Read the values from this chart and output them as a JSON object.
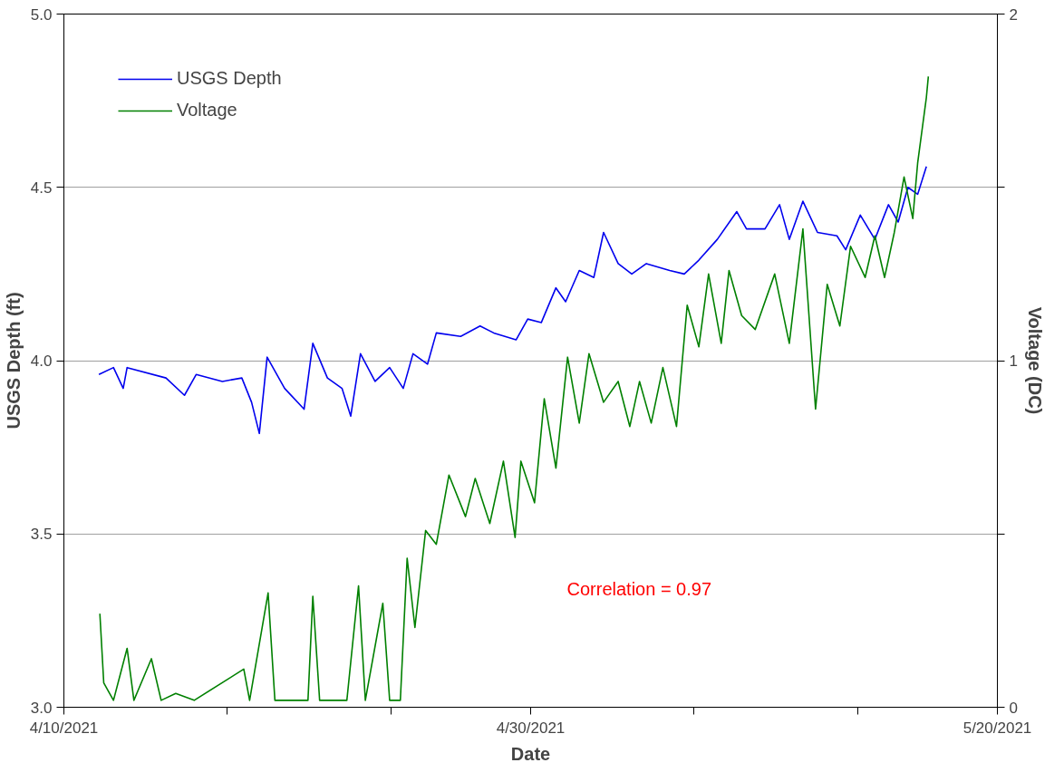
{
  "chart_data": {
    "type": "line",
    "xlabel": "Date",
    "ylabel": "USGS Depth (ft)",
    "y2label": "Voltage (DC)",
    "xlim": [
      "2021-04-10",
      "2021-05-20"
    ],
    "xticks": [
      {
        "value": "2021-04-10",
        "label": "4/10/2021"
      },
      {
        "value": "2021-04-17",
        "label": null
      },
      {
        "value": "2021-04-24",
        "label": null
      },
      {
        "value": "2021-04-30",
        "label": "4/30/2021"
      },
      {
        "value": "2021-05-07",
        "label": null
      },
      {
        "value": "2021-05-14",
        "label": null
      },
      {
        "value": "2021-05-20",
        "label": "5/20/2021"
      }
    ],
    "ylim": [
      3.0,
      5.0
    ],
    "yticks": [
      {
        "value": 3.0,
        "label": "3.0"
      },
      3.5,
      {
        "value": 4.0,
        "label": "4.0"
      },
      4.5,
      {
        "value": 5.0,
        "label": "5.0"
      }
    ],
    "y2lim": [
      0,
      2
    ],
    "y2ticks": [
      0,
      {
        "value": 0.5,
        "label": null
      },
      1,
      {
        "value": 1.5,
        "label": null
      },
      2
    ],
    "grid": "y",
    "legend": "top left",
    "annotations": [
      "Correlation = 0.97"
    ],
    "series": [
      {
        "name": "USGS Depth",
        "color": "#0000ee",
        "x": [
          "2021-04-11T12:00",
          "2021-04-12T03:00",
          "2021-04-12T13:00",
          "2021-04-12T17:00",
          "2021-04-14T09:00",
          "2021-04-15T04:00",
          "2021-04-15T16:00",
          "2021-04-16T19:00",
          "2021-04-17T15:00",
          "2021-04-18T01:00",
          "2021-04-18T09:00",
          "2021-04-18T17:00",
          "2021-04-19T11:00",
          "2021-04-20T07:00",
          "2021-04-20T16:00",
          "2021-04-21T07:00",
          "2021-04-21T22:00",
          "2021-04-22T07:00",
          "2021-04-22T17:00",
          "2021-04-23T08:00",
          "2021-04-23T23:00",
          "2021-04-24T13:00",
          "2021-04-24T23:00",
          "2021-04-25T14:00",
          "2021-04-25T23:00",
          "2021-04-27T00:00",
          "2021-04-27T20:00",
          "2021-04-28T10:00",
          "2021-04-29T09:00",
          "2021-04-29T21:00",
          "2021-04-30T11:00",
          "2021-05-01T02:00",
          "2021-05-01T12:00",
          "2021-05-02T02:00",
          "2021-05-02T17:00",
          "2021-05-03T03:00",
          "2021-05-03T18:00",
          "2021-05-04T08:00",
          "2021-05-04T23:00",
          "2021-05-05T23:00",
          "2021-05-06T14:00",
          "2021-05-07T05:00",
          "2021-05-08T00:00",
          "2021-05-08T20:00",
          "2021-05-09T06:00",
          "2021-05-10T01:00",
          "2021-05-10T16:00",
          "2021-05-11T02:00",
          "2021-05-11T16:00",
          "2021-05-12T07:00",
          "2021-05-13T03:00",
          "2021-05-13T12:00",
          "2021-05-14T03:00",
          "2021-05-14T18:00",
          "2021-05-15T08:00",
          "2021-05-15T18:00",
          "2021-05-16T04:00",
          "2021-05-16T14:00",
          "2021-05-16T23:00"
        ],
        "values": [
          3.96,
          3.98,
          3.92,
          3.98,
          3.95,
          3.9,
          3.96,
          3.94,
          3.95,
          3.88,
          3.79,
          4.01,
          3.92,
          3.86,
          4.05,
          3.95,
          3.92,
          3.84,
          4.02,
          3.94,
          3.98,
          3.92,
          4.02,
          3.99,
          4.08,
          4.07,
          4.1,
          4.08,
          4.06,
          4.12,
          4.11,
          4.21,
          4.17,
          4.26,
          4.24,
          4.37,
          4.28,
          4.25,
          4.28,
          4.26,
          4.25,
          4.29,
          4.35,
          4.43,
          4.38,
          4.38,
          4.45,
          4.35,
          4.46,
          4.37,
          4.36,
          4.32,
          4.42,
          4.35,
          4.45,
          4.4,
          4.5,
          4.48,
          4.56
        ]
      },
      {
        "name": "Voltage",
        "color": "#008000",
        "axis": "y2",
        "x": [
          "2021-04-11T13:00",
          "2021-04-11T17:00",
          "2021-04-12T03:00",
          "2021-04-12T17:00",
          "2021-04-13T00:00",
          "2021-04-13T18:00",
          "2021-04-14T04:00",
          "2021-04-14T19:00",
          "2021-04-15T14:00",
          "2021-04-17T17:00",
          "2021-04-17T23:00",
          "2021-04-18T18:00",
          "2021-04-19T01:00",
          "2021-04-20T11:00",
          "2021-04-20T16:00",
          "2021-04-20T23:00",
          "2021-04-22T03:00",
          "2021-04-22T15:00",
          "2021-04-22T22:00",
          "2021-04-23T16:00",
          "2021-04-23T23:00",
          "2021-04-24T10:00",
          "2021-04-24T17:00",
          "2021-04-25T01:00",
          "2021-04-25T12:00",
          "2021-04-25T23:00",
          "2021-04-26T12:00",
          "2021-04-27T05:00",
          "2021-04-27T15:00",
          "2021-04-28T06:00",
          "2021-04-28T20:00",
          "2021-04-29T08:00",
          "2021-04-29T14:00",
          "2021-04-30T04:00",
          "2021-04-30T14:00",
          "2021-05-01T02:00",
          "2021-05-01T14:00",
          "2021-05-02T02:00",
          "2021-05-02T12:00",
          "2021-05-03T03:00",
          "2021-05-03T18:00",
          "2021-05-04T06:00",
          "2021-05-04T16:00",
          "2021-05-05T04:00",
          "2021-05-05T16:00",
          "2021-05-06T06:00",
          "2021-05-06T17:00",
          "2021-05-07T05:00",
          "2021-05-07T15:00",
          "2021-05-08T04:00",
          "2021-05-08T12:00",
          "2021-05-09T01:00",
          "2021-05-09T15:00",
          "2021-05-10T11:00",
          "2021-05-11T02:00",
          "2021-05-11T16:00",
          "2021-05-12T05:00",
          "2021-05-12T17:00",
          "2021-05-13T06:00",
          "2021-05-13T17:00",
          "2021-05-14T08:00",
          "2021-05-14T18:00",
          "2021-05-15T04:00",
          "2021-05-15T14:00",
          "2021-05-16T00:00",
          "2021-05-16T09:00",
          "2021-05-16T14:00",
          "2021-05-16T23:00",
          "2021-05-17T01:00"
        ],
        "values": [
          0.27,
          0.07,
          0.02,
          0.17,
          0.02,
          0.14,
          0.02,
          0.04,
          0.02,
          0.11,
          0.02,
          0.33,
          0.02,
          0.02,
          0.32,
          0.02,
          0.02,
          0.35,
          0.02,
          0.3,
          0.02,
          0.02,
          0.43,
          0.23,
          0.51,
          0.47,
          0.67,
          0.55,
          0.66,
          0.53,
          0.71,
          0.49,
          0.71,
          0.59,
          0.89,
          0.69,
          1.01,
          0.82,
          1.02,
          0.88,
          0.94,
          0.81,
          0.94,
          0.82,
          0.98,
          0.81,
          1.16,
          1.04,
          1.25,
          1.05,
          1.26,
          1.13,
          1.09,
          1.25,
          1.05,
          1.38,
          0.86,
          1.22,
          1.1,
          1.33,
          1.24,
          1.36,
          1.24,
          1.37,
          1.53,
          1.41,
          1.57,
          1.76,
          1.82
        ]
      }
    ]
  }
}
